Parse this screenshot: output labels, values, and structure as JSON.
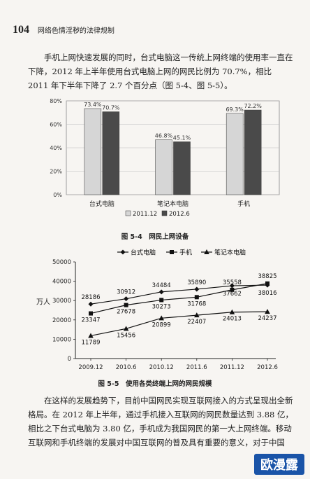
{
  "header": {
    "page_number": "104",
    "running_title": "网络色情淫秽的法律规制"
  },
  "para1": "手机上网快速发展的同时，台式电脑这一传统上网终端的使用率一直在下降，2012 年上半年使用台式电脑上网的网民比例为 70.7%，相比 2011 年下半年下降了 2.7 个百分点（图 5-4、图 5-5）。",
  "caption1": "图 5-4　网民上网设备",
  "caption2": "图 5-5　使用各类终端上网的网民规模",
  "para2": "在这样的发展趋势下，目前中国网民实现互联网接入的方式呈现出全新格局。在 2012 年上半年，通过手机接入互联网的网民数量达到 3.88 亿，相比之下台式电脑为 3.80 亿，手机成为我国网民的第一大上网终端。移动互联网和手机终端的发展对中国互联网的普及具有重要的意义，对于中国",
  "watermark": "欧漫露",
  "chart_data": [
    {
      "type": "bar",
      "categories": [
        "台式电脑",
        "笔记本电脑",
        "手机"
      ],
      "series": [
        {
          "name": "2011.12",
          "values": [
            73.4,
            46.8,
            69.3
          ],
          "labels": [
            "73.4%",
            "46.8%",
            "69.3%"
          ],
          "color": "#d6d6d6"
        },
        {
          "name": "2012.6",
          "values": [
            70.7,
            45.1,
            72.2
          ],
          "labels": [
            "70.7%",
            "45.1%",
            "72.2%"
          ],
          "color": "#4a4a4a"
        }
      ],
      "ylim": [
        0,
        80
      ],
      "yticks": [
        "0%",
        "20%",
        "40%",
        "60%",
        "80%"
      ],
      "grid": true,
      "legend": "bottom"
    },
    {
      "type": "line",
      "x": [
        "2009.12",
        "2010.6",
        "2010.12",
        "2011.6",
        "2011.12",
        "2012.6"
      ],
      "series": [
        {
          "name": "台式电脑",
          "marker": "diamond",
          "values": [
            28186,
            30912,
            34484,
            35890,
            37662,
            38016
          ]
        },
        {
          "name": "手机",
          "marker": "square",
          "values": [
            23347,
            27678,
            30273,
            31768,
            35558,
            38825
          ]
        },
        {
          "name": "笔记本电脑",
          "marker": "triangle",
          "values": [
            11789,
            15456,
            20899,
            22407,
            24013,
            24237
          ]
        }
      ],
      "ylabel": "万人",
      "ylim": [
        0,
        50000
      ],
      "yticks": [
        "0",
        "10000",
        "20000",
        "30000",
        "40000",
        "50000"
      ],
      "grid": false,
      "legend": "top"
    }
  ]
}
